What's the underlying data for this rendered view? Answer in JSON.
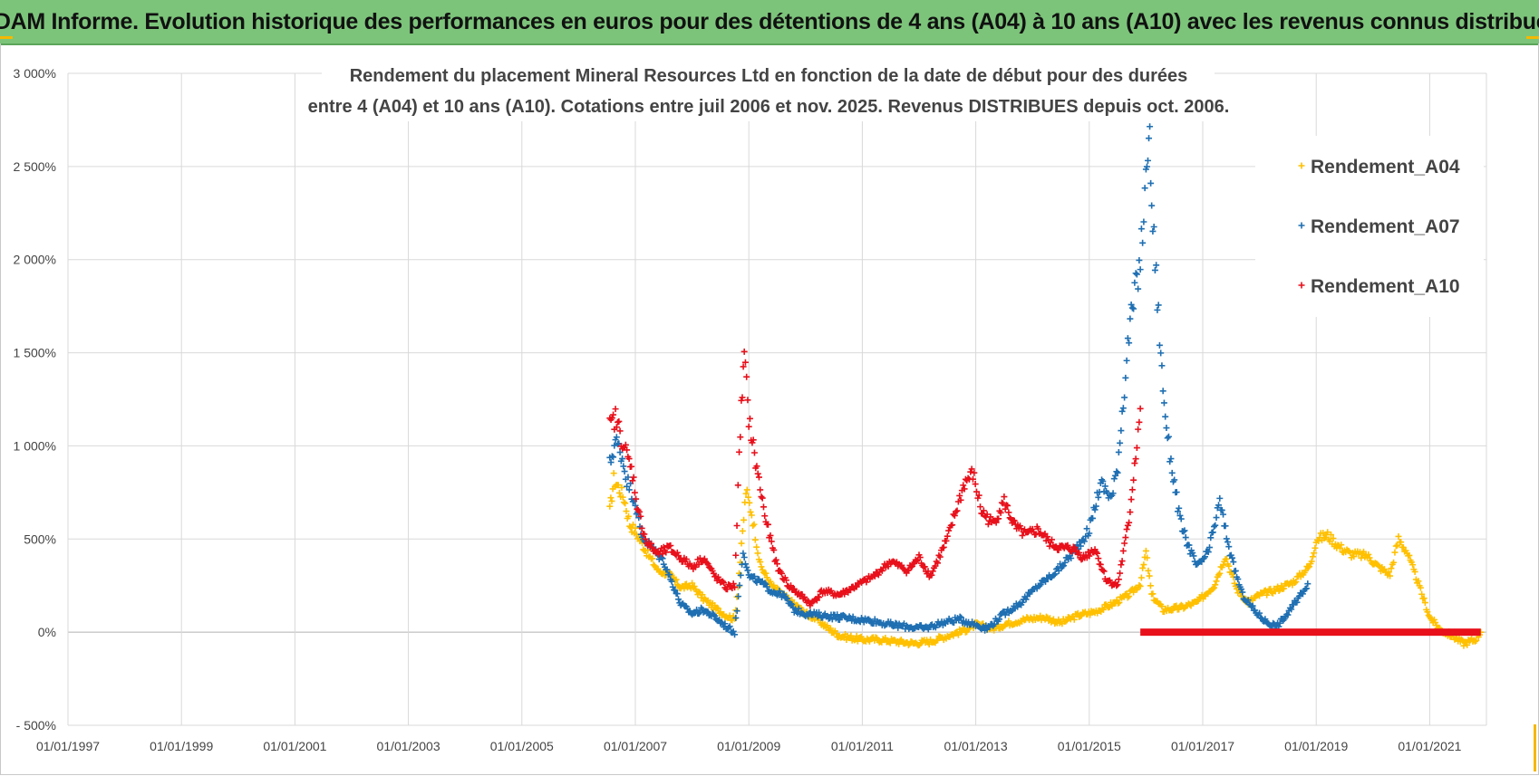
{
  "banner": {
    "title": "ADAM Informe. Evolution historique des performances en euros pour des détentions de 4 ans (A04) à 10 ans (A10) avec les revenus connus distribués",
    "background_color": "#7cc47a",
    "corner_color": "#f5b800"
  },
  "chart_data": {
    "type": "scatter",
    "title_lines": [
      "Rendement du placement Mineral Resources Ltd en fonction de la date de début pour des durées",
      "entre 4 (A04) et 10 ans (A10). Cotations entre juil 2006 et nov. 2025. Revenus DISTRIBUES depuis oct. 2006."
    ],
    "xlabel": "",
    "ylabel": "",
    "x_tick_labels": [
      "01/01/1997",
      "01/01/1999",
      "01/01/2001",
      "01/01/2003",
      "01/01/2005",
      "01/01/2007",
      "01/01/2009",
      "01/01/2011",
      "01/01/2013",
      "01/01/2015",
      "01/01/2017",
      "01/01/2019",
      "01/01/2021"
    ],
    "x_tick_years": [
      1997,
      1999,
      2001,
      2003,
      2005,
      2007,
      2009,
      2011,
      2013,
      2015,
      2017,
      2019,
      2021
    ],
    "xlim": [
      1997,
      2022
    ],
    "y_tick_labels": [
      "- 500%",
      "0%",
      "500%",
      "1 000%",
      "1 500%",
      "2 000%",
      "2 500%",
      "3 000%"
    ],
    "y_tick_values": [
      -500,
      0,
      500,
      1000,
      1500,
      2000,
      2500,
      3000
    ],
    "ylim": [
      -500,
      3000
    ],
    "grid": true,
    "legend_position": "top-right",
    "series": [
      {
        "name": "Rendement_A04",
        "color": "#ffc000",
        "points": [
          [
            2006.55,
            650
          ],
          [
            2006.62,
            820
          ],
          [
            2006.7,
            780
          ],
          [
            2006.8,
            720
          ],
          [
            2006.9,
            580
          ],
          [
            2007.0,
            540
          ],
          [
            2007.2,
            430
          ],
          [
            2007.4,
            330
          ],
          [
            2007.6,
            310
          ],
          [
            2007.8,
            240
          ],
          [
            2008.0,
            250
          ],
          [
            2008.2,
            180
          ],
          [
            2008.4,
            130
          ],
          [
            2008.6,
            90
          ],
          [
            2008.75,
            70
          ],
          [
            2008.85,
            380
          ],
          [
            2008.95,
            760
          ],
          [
            2009.05,
            640
          ],
          [
            2009.2,
            360
          ],
          [
            2009.4,
            250
          ],
          [
            2009.6,
            200
          ],
          [
            2009.8,
            150
          ],
          [
            2010.0,
            100
          ],
          [
            2010.2,
            70
          ],
          [
            2010.4,
            20
          ],
          [
            2010.6,
            -20
          ],
          [
            2010.8,
            -30
          ],
          [
            2011.0,
            -40
          ],
          [
            2011.3,
            -40
          ],
          [
            2011.6,
            -50
          ],
          [
            2011.9,
            -60
          ],
          [
            2012.2,
            -50
          ],
          [
            2012.5,
            -20
          ],
          [
            2012.8,
            10
          ],
          [
            2013.0,
            40
          ],
          [
            2013.3,
            20
          ],
          [
            2013.6,
            50
          ],
          [
            2013.9,
            70
          ],
          [
            2014.2,
            80
          ],
          [
            2014.5,
            50
          ],
          [
            2014.8,
            90
          ],
          [
            2015.1,
            110
          ],
          [
            2015.4,
            150
          ],
          [
            2015.7,
            200
          ],
          [
            2015.9,
            260
          ],
          [
            2016.0,
            430
          ],
          [
            2016.1,
            200
          ],
          [
            2016.3,
            120
          ],
          [
            2016.6,
            130
          ],
          [
            2016.9,
            160
          ],
          [
            2017.2,
            250
          ],
          [
            2017.4,
            410
          ],
          [
            2017.6,
            230
          ],
          [
            2017.8,
            160
          ],
          [
            2018.0,
            200
          ],
          [
            2018.3,
            230
          ],
          [
            2018.6,
            270
          ],
          [
            2018.9,
            360
          ],
          [
            2019.0,
            500
          ],
          [
            2019.2,
            520
          ],
          [
            2019.4,
            460
          ],
          [
            2019.6,
            420
          ],
          [
            2019.9,
            410
          ],
          [
            2020.1,
            350
          ],
          [
            2020.3,
            310
          ],
          [
            2020.45,
            500
          ],
          [
            2020.6,
            430
          ],
          [
            2020.8,
            260
          ],
          [
            2021.0,
            80
          ],
          [
            2021.2,
            10
          ],
          [
            2021.4,
            -20
          ],
          [
            2021.6,
            -60
          ],
          [
            2021.8,
            -40
          ],
          [
            2021.9,
            0
          ]
        ]
      },
      {
        "name": "Rendement_A07",
        "color": "#1f6fb2",
        "points": [
          [
            2006.55,
            900
          ],
          [
            2006.65,
            1030
          ],
          [
            2006.75,
            960
          ],
          [
            2006.85,
            820
          ],
          [
            2007.0,
            700
          ],
          [
            2007.1,
            520
          ],
          [
            2007.3,
            450
          ],
          [
            2007.5,
            380
          ],
          [
            2007.6,
            300
          ],
          [
            2007.8,
            150
          ],
          [
            2008.0,
            100
          ],
          [
            2008.2,
            120
          ],
          [
            2008.4,
            80
          ],
          [
            2008.6,
            30
          ],
          [
            2008.75,
            0
          ],
          [
            2008.9,
            440
          ],
          [
            2009.0,
            300
          ],
          [
            2009.2,
            270
          ],
          [
            2009.4,
            220
          ],
          [
            2009.6,
            200
          ],
          [
            2009.8,
            120
          ],
          [
            2010.0,
            100
          ],
          [
            2010.3,
            90
          ],
          [
            2010.6,
            80
          ],
          [
            2010.9,
            70
          ],
          [
            2011.2,
            60
          ],
          [
            2011.5,
            40
          ],
          [
            2011.8,
            30
          ],
          [
            2012.1,
            20
          ],
          [
            2012.4,
            50
          ],
          [
            2012.7,
            70
          ],
          [
            2013.0,
            40
          ],
          [
            2013.2,
            20
          ],
          [
            2013.5,
            100
          ],
          [
            2013.8,
            160
          ],
          [
            2014.1,
            250
          ],
          [
            2014.4,
            320
          ],
          [
            2014.7,
            420
          ],
          [
            2015.0,
            550
          ],
          [
            2015.2,
            800
          ],
          [
            2015.4,
            720
          ],
          [
            2015.5,
            900
          ],
          [
            2015.6,
            1250
          ],
          [
            2015.7,
            1600
          ],
          [
            2015.8,
            1800
          ],
          [
            2015.9,
            2000
          ],
          [
            2016.0,
            2400
          ],
          [
            2016.05,
            2750
          ],
          [
            2016.1,
            2300
          ],
          [
            2016.2,
            1800
          ],
          [
            2016.3,
            1300
          ],
          [
            2016.4,
            1000
          ],
          [
            2016.5,
            800
          ],
          [
            2016.6,
            600
          ],
          [
            2016.7,
            500
          ],
          [
            2016.9,
            350
          ],
          [
            2017.1,
            430
          ],
          [
            2017.3,
            700
          ],
          [
            2017.5,
            400
          ],
          [
            2017.7,
            200
          ],
          [
            2017.9,
            120
          ],
          [
            2018.1,
            60
          ],
          [
            2018.3,
            30
          ],
          [
            2018.5,
            100
          ],
          [
            2018.7,
            190
          ],
          [
            2018.85,
            260
          ]
        ]
      },
      {
        "name": "Rendement_A10",
        "color": "#e8101b",
        "points": [
          [
            2006.55,
            1100
          ],
          [
            2006.65,
            1150
          ],
          [
            2006.75,
            1050
          ],
          [
            2006.85,
            950
          ],
          [
            2006.95,
            850
          ],
          [
            2007.05,
            650
          ],
          [
            2007.2,
            480
          ],
          [
            2007.4,
            420
          ],
          [
            2007.6,
            450
          ],
          [
            2007.8,
            400
          ],
          [
            2008.0,
            350
          ],
          [
            2008.2,
            400
          ],
          [
            2008.4,
            300
          ],
          [
            2008.6,
            240
          ],
          [
            2008.75,
            250
          ],
          [
            2008.85,
            1100
          ],
          [
            2008.92,
            1480
          ],
          [
            2009.0,
            1150
          ],
          [
            2009.1,
            950
          ],
          [
            2009.3,
            600
          ],
          [
            2009.5,
            350
          ],
          [
            2009.7,
            250
          ],
          [
            2009.9,
            200
          ],
          [
            2010.1,
            150
          ],
          [
            2010.3,
            220
          ],
          [
            2010.6,
            200
          ],
          [
            2010.9,
            250
          ],
          [
            2011.2,
            300
          ],
          [
            2011.5,
            380
          ],
          [
            2011.8,
            330
          ],
          [
            2012.0,
            400
          ],
          [
            2012.2,
            300
          ],
          [
            2012.5,
            500
          ],
          [
            2012.8,
            800
          ],
          [
            2012.95,
            850
          ],
          [
            2013.1,
            650
          ],
          [
            2013.3,
            580
          ],
          [
            2013.5,
            700
          ],
          [
            2013.7,
            560
          ],
          [
            2013.9,
            520
          ],
          [
            2014.1,
            550
          ],
          [
            2014.3,
            480
          ],
          [
            2014.5,
            450
          ],
          [
            2014.7,
            450
          ],
          [
            2014.9,
            400
          ],
          [
            2015.1,
            450
          ],
          [
            2015.3,
            280
          ],
          [
            2015.5,
            250
          ],
          [
            2015.7,
            600
          ],
          [
            2015.8,
            900
          ],
          [
            2015.9,
            1200
          ]
        ]
      },
      {
        "name": "Rendement_A10 (zero band)",
        "color": "#e8101b",
        "segment": [
          2015.9,
          2021.9,
          0
        ]
      }
    ]
  }
}
